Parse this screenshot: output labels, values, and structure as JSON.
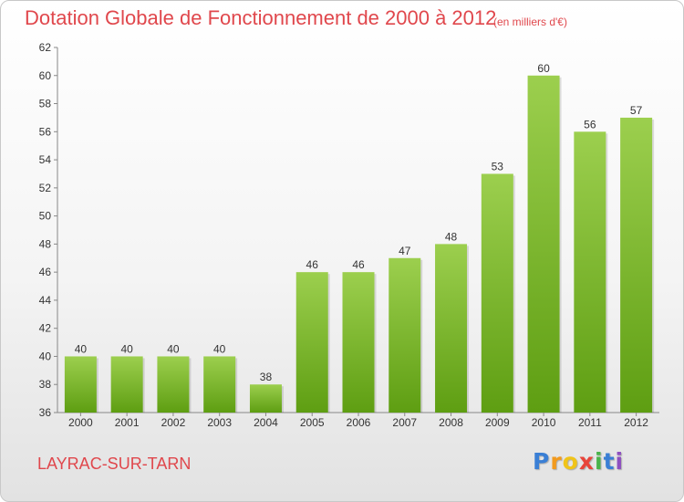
{
  "title": "Dotation Globale de Fonctionnement de 2000 à 2012",
  "unit_note": "(en milliers d'€)",
  "commune": "LAYRAC-SUR-TARN",
  "logo": {
    "letters": [
      "P",
      "r",
      "o",
      "x",
      "i",
      "t",
      "i"
    ],
    "colors": [
      "#3a7fd5",
      "#f29a1e",
      "#f0c419",
      "#e8443a",
      "#49b34a",
      "#3a7fd5",
      "#8e4fc0"
    ]
  },
  "colors": {
    "bar_top": "#9ccf4e",
    "bar_bottom": "#5e9e12",
    "accent": "#e0474c"
  },
  "chart_data": {
    "type": "bar",
    "title": "Dotation Globale de Fonctionnement de 2000 à 2012",
    "categories": [
      "2000",
      "2001",
      "2002",
      "2003",
      "2004",
      "2005",
      "2006",
      "2007",
      "2008",
      "2009",
      "2010",
      "2011",
      "2012"
    ],
    "values": [
      40,
      40,
      40,
      40,
      38,
      46,
      46,
      47,
      48,
      53,
      60,
      56,
      57
    ],
    "ylim": [
      36,
      62
    ],
    "yticks": [
      36,
      38,
      40,
      42,
      44,
      46,
      48,
      50,
      52,
      54,
      56,
      58,
      60,
      62
    ],
    "grid": false
  }
}
